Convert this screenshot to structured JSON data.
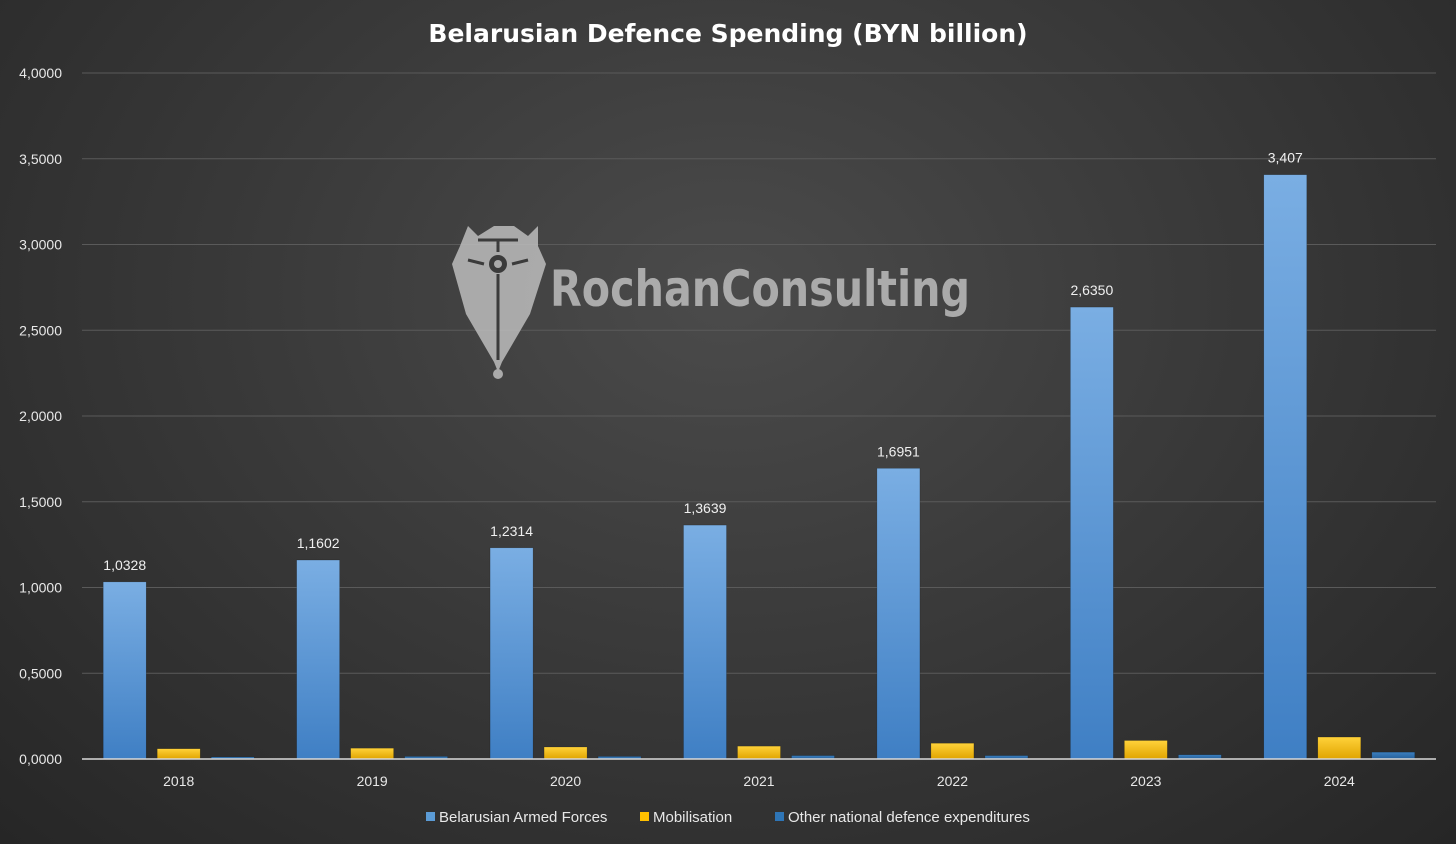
{
  "chart_data": {
    "type": "bar",
    "title": "Belarusian Defence Spending (BYN billion)",
    "categories": [
      "2018",
      "2019",
      "2020",
      "2021",
      "2022",
      "2023",
      "2024"
    ],
    "series": [
      {
        "name": "Belarusian Armed Forces",
        "color": "#5b9bd5",
        "values": [
          1.0328,
          1.1602,
          1.2314,
          1.3639,
          1.6951,
          2.635,
          3.407
        ],
        "labels": [
          "1,0328",
          "1,1602",
          "1,2314",
          "1,3639",
          "1,6951",
          "2,6350",
          "3,407"
        ]
      },
      {
        "name": "Mobilisation",
        "color": "#ffc000",
        "values": [
          0.06,
          0.063,
          0.07,
          0.075,
          0.092,
          0.108,
          0.128
        ]
      },
      {
        "name": "Other national defence expenditures",
        "color": "#2e75b6",
        "values": [
          0.012,
          0.015,
          0.015,
          0.02,
          0.02,
          0.025,
          0.04
        ]
      }
    ],
    "ylim": [
      0,
      4
    ],
    "yticks": [
      "0,0000",
      "0,5000",
      "1,0000",
      "1,5000",
      "2,0000",
      "2,5000",
      "3,0000",
      "3,5000",
      "4,0000"
    ],
    "grid": true,
    "legend": "bottom"
  },
  "watermark": {
    "text": "RochanConsulting",
    "icon": "pen-nib-bear-logo-icon"
  }
}
